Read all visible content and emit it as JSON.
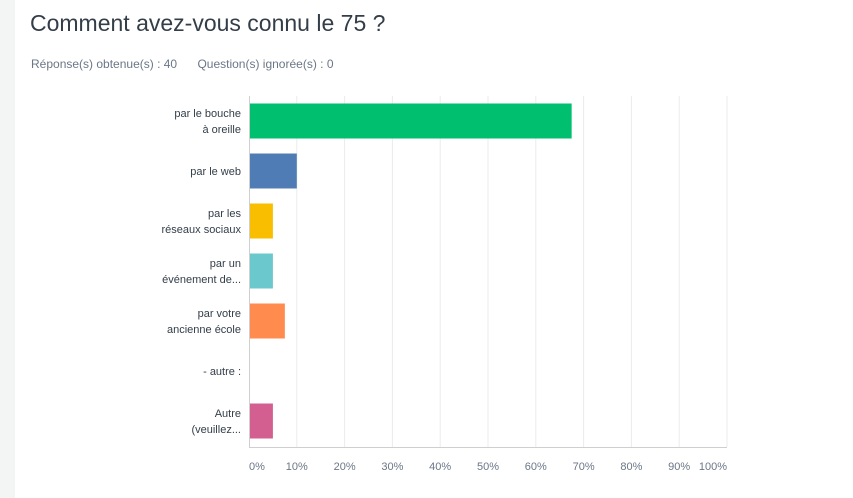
{
  "question": {
    "title": "Comment avez-vous connu le 75 ?",
    "answered": "Réponse(s) obtenue(s) : 40",
    "skipped": "Question(s) ignorée(s) : 0"
  },
  "chart_data": {
    "type": "bar",
    "orientation": "horizontal",
    "categories": [
      [
        "par le bouche",
        "à oreille"
      ],
      [
        "par le web"
      ],
      [
        "par les",
        "réseaux sociaux"
      ],
      [
        "par un",
        "événement de..."
      ],
      [
        "par votre",
        "ancienne école"
      ],
      [
        "- autre :"
      ],
      [
        "Autre",
        "(veuillez..."
      ]
    ],
    "values": [
      67.5,
      10,
      5,
      5,
      7.5,
      0,
      5
    ],
    "colors": [
      "#00bf6f",
      "#507cb6",
      "#f9be00",
      "#6bc8cd",
      "#ff8b4f",
      "#7d5ba6",
      "#d25f90"
    ],
    "xlim": [
      0,
      100
    ],
    "x_ticks": [
      "0%",
      "10%",
      "20%",
      "30%",
      "40%",
      "50%",
      "60%",
      "70%",
      "80%",
      "90%",
      "100%"
    ],
    "grid": true
  }
}
